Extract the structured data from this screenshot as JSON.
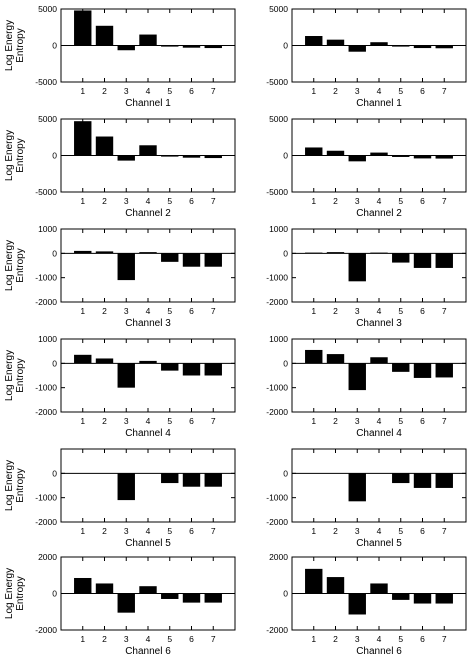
{
  "chart_data": [
    {
      "type": "bar",
      "xlabel": "Channel 1",
      "ylabel": [
        "Log Energy",
        "Entropy"
      ],
      "categories": [
        "1",
        "2",
        "3",
        "4",
        "5",
        "6",
        "7"
      ],
      "values": [
        4800,
        2700,
        -650,
        1500,
        -150,
        -300,
        -350
      ],
      "ylim": [
        -5000,
        5000
      ],
      "yticks": [
        "5000",
        "0",
        "-5000"
      ]
    },
    {
      "type": "bar",
      "xlabel": "Channel 1",
      "ylabel": [],
      "categories": [
        "1",
        "2",
        "3",
        "4",
        "5",
        "6",
        "7"
      ],
      "values": [
        1300,
        800,
        -850,
        450,
        -150,
        -350,
        -380
      ],
      "ylim": [
        -5000,
        5000
      ],
      "yticks": [
        "5000",
        "0",
        "-5000"
      ]
    },
    {
      "type": "bar",
      "xlabel": "Channel 2",
      "ylabel": [
        "Log Energy",
        "Entropy"
      ],
      "categories": [
        "1",
        "2",
        "3",
        "4",
        "5",
        "6",
        "7"
      ],
      "values": [
        4700,
        2600,
        -700,
        1400,
        -150,
        -300,
        -350
      ],
      "ylim": [
        -5000,
        5000
      ],
      "yticks": [
        "5000",
        "0",
        "-5000"
      ]
    },
    {
      "type": "bar",
      "xlabel": "Channel 2",
      "ylabel": [],
      "categories": [
        "1",
        "2",
        "3",
        "4",
        "5",
        "6",
        "7"
      ],
      "values": [
        1100,
        650,
        -800,
        400,
        -200,
        -400,
        -420
      ],
      "ylim": [
        -5000,
        5000
      ],
      "yticks": [
        "5000",
        "0",
        "-5000"
      ]
    },
    {
      "type": "bar",
      "xlabel": "Channel 3",
      "ylabel": [
        "Log Energy",
        "Entropy"
      ],
      "categories": [
        "1",
        "2",
        "3",
        "4",
        "5",
        "6",
        "7"
      ],
      "values": [
        100,
        80,
        -1100,
        50,
        -350,
        -550,
        -550
      ],
      "ylim": [
        -2000,
        1000
      ],
      "yticks": [
        "1000",
        "0",
        "-1000",
        "-2000"
      ]
    },
    {
      "type": "bar",
      "xlabel": "Channel 3",
      "ylabel": [],
      "categories": [
        "1",
        "2",
        "3",
        "4",
        "5",
        "6",
        "7"
      ],
      "values": [
        30,
        50,
        -1150,
        30,
        -380,
        -600,
        -600
      ],
      "ylim": [
        -2000,
        1000
      ],
      "yticks": [
        "1000",
        "0",
        "-1000",
        "-2000"
      ]
    },
    {
      "type": "bar",
      "xlabel": "Channel 4",
      "ylabel": [
        "Log Energy",
        "Entropy"
      ],
      "categories": [
        "1",
        "2",
        "3",
        "4",
        "5",
        "6",
        "7"
      ],
      "values": [
        350,
        200,
        -1000,
        100,
        -300,
        -500,
        -500
      ],
      "ylim": [
        -2000,
        1000
      ],
      "yticks": [
        "1000",
        "0",
        "-1000",
        "-2000"
      ]
    },
    {
      "type": "bar",
      "xlabel": "Channel 4",
      "ylabel": [],
      "categories": [
        "1",
        "2",
        "3",
        "4",
        "5",
        "6",
        "7"
      ],
      "values": [
        550,
        380,
        -1100,
        250,
        -350,
        -600,
        -580
      ],
      "ylim": [
        -2000,
        1000
      ],
      "yticks": [
        "1000",
        "0",
        "-1000",
        "-2000"
      ]
    },
    {
      "type": "bar",
      "xlabel": "Channel 5",
      "ylabel": [
        "Log Energy",
        "Entropy"
      ],
      "categories": [
        "1",
        "2",
        "3",
        "4",
        "5",
        "6",
        "7"
      ],
      "values": [
        0,
        0,
        -1100,
        0,
        -400,
        -550,
        -550
      ],
      "ylim": [
        -2000,
        1000
      ],
      "yticks": [
        "0",
        "-1000",
        "-2000"
      ]
    },
    {
      "type": "bar",
      "xlabel": "Channel 5",
      "ylabel": [],
      "categories": [
        "1",
        "2",
        "3",
        "4",
        "5",
        "6",
        "7"
      ],
      "values": [
        0,
        0,
        -1150,
        0,
        -400,
        -600,
        -600
      ],
      "ylim": [
        -2000,
        1000
      ],
      "yticks": [
        "0",
        "-1000",
        "-2000"
      ]
    },
    {
      "type": "bar",
      "xlabel": "Channel 6",
      "ylabel": [
        "Log Energy",
        "Entropy"
      ],
      "categories": [
        "1",
        "2",
        "3",
        "4",
        "5",
        "6",
        "7"
      ],
      "values": [
        850,
        550,
        -1050,
        400,
        -300,
        -500,
        -500
      ],
      "ylim": [
        -2000,
        2000
      ],
      "yticks": [
        "2000",
        "0",
        "-2000"
      ]
    },
    {
      "type": "bar",
      "xlabel": "Channel 6",
      "ylabel": [],
      "categories": [
        "1",
        "2",
        "3",
        "4",
        "5",
        "6",
        "7"
      ],
      "values": [
        1350,
        900,
        -1150,
        550,
        -350,
        -550,
        -550
      ],
      "ylim": [
        -2000,
        2000
      ],
      "yticks": [
        "2000",
        "0",
        "-2000"
      ]
    }
  ]
}
